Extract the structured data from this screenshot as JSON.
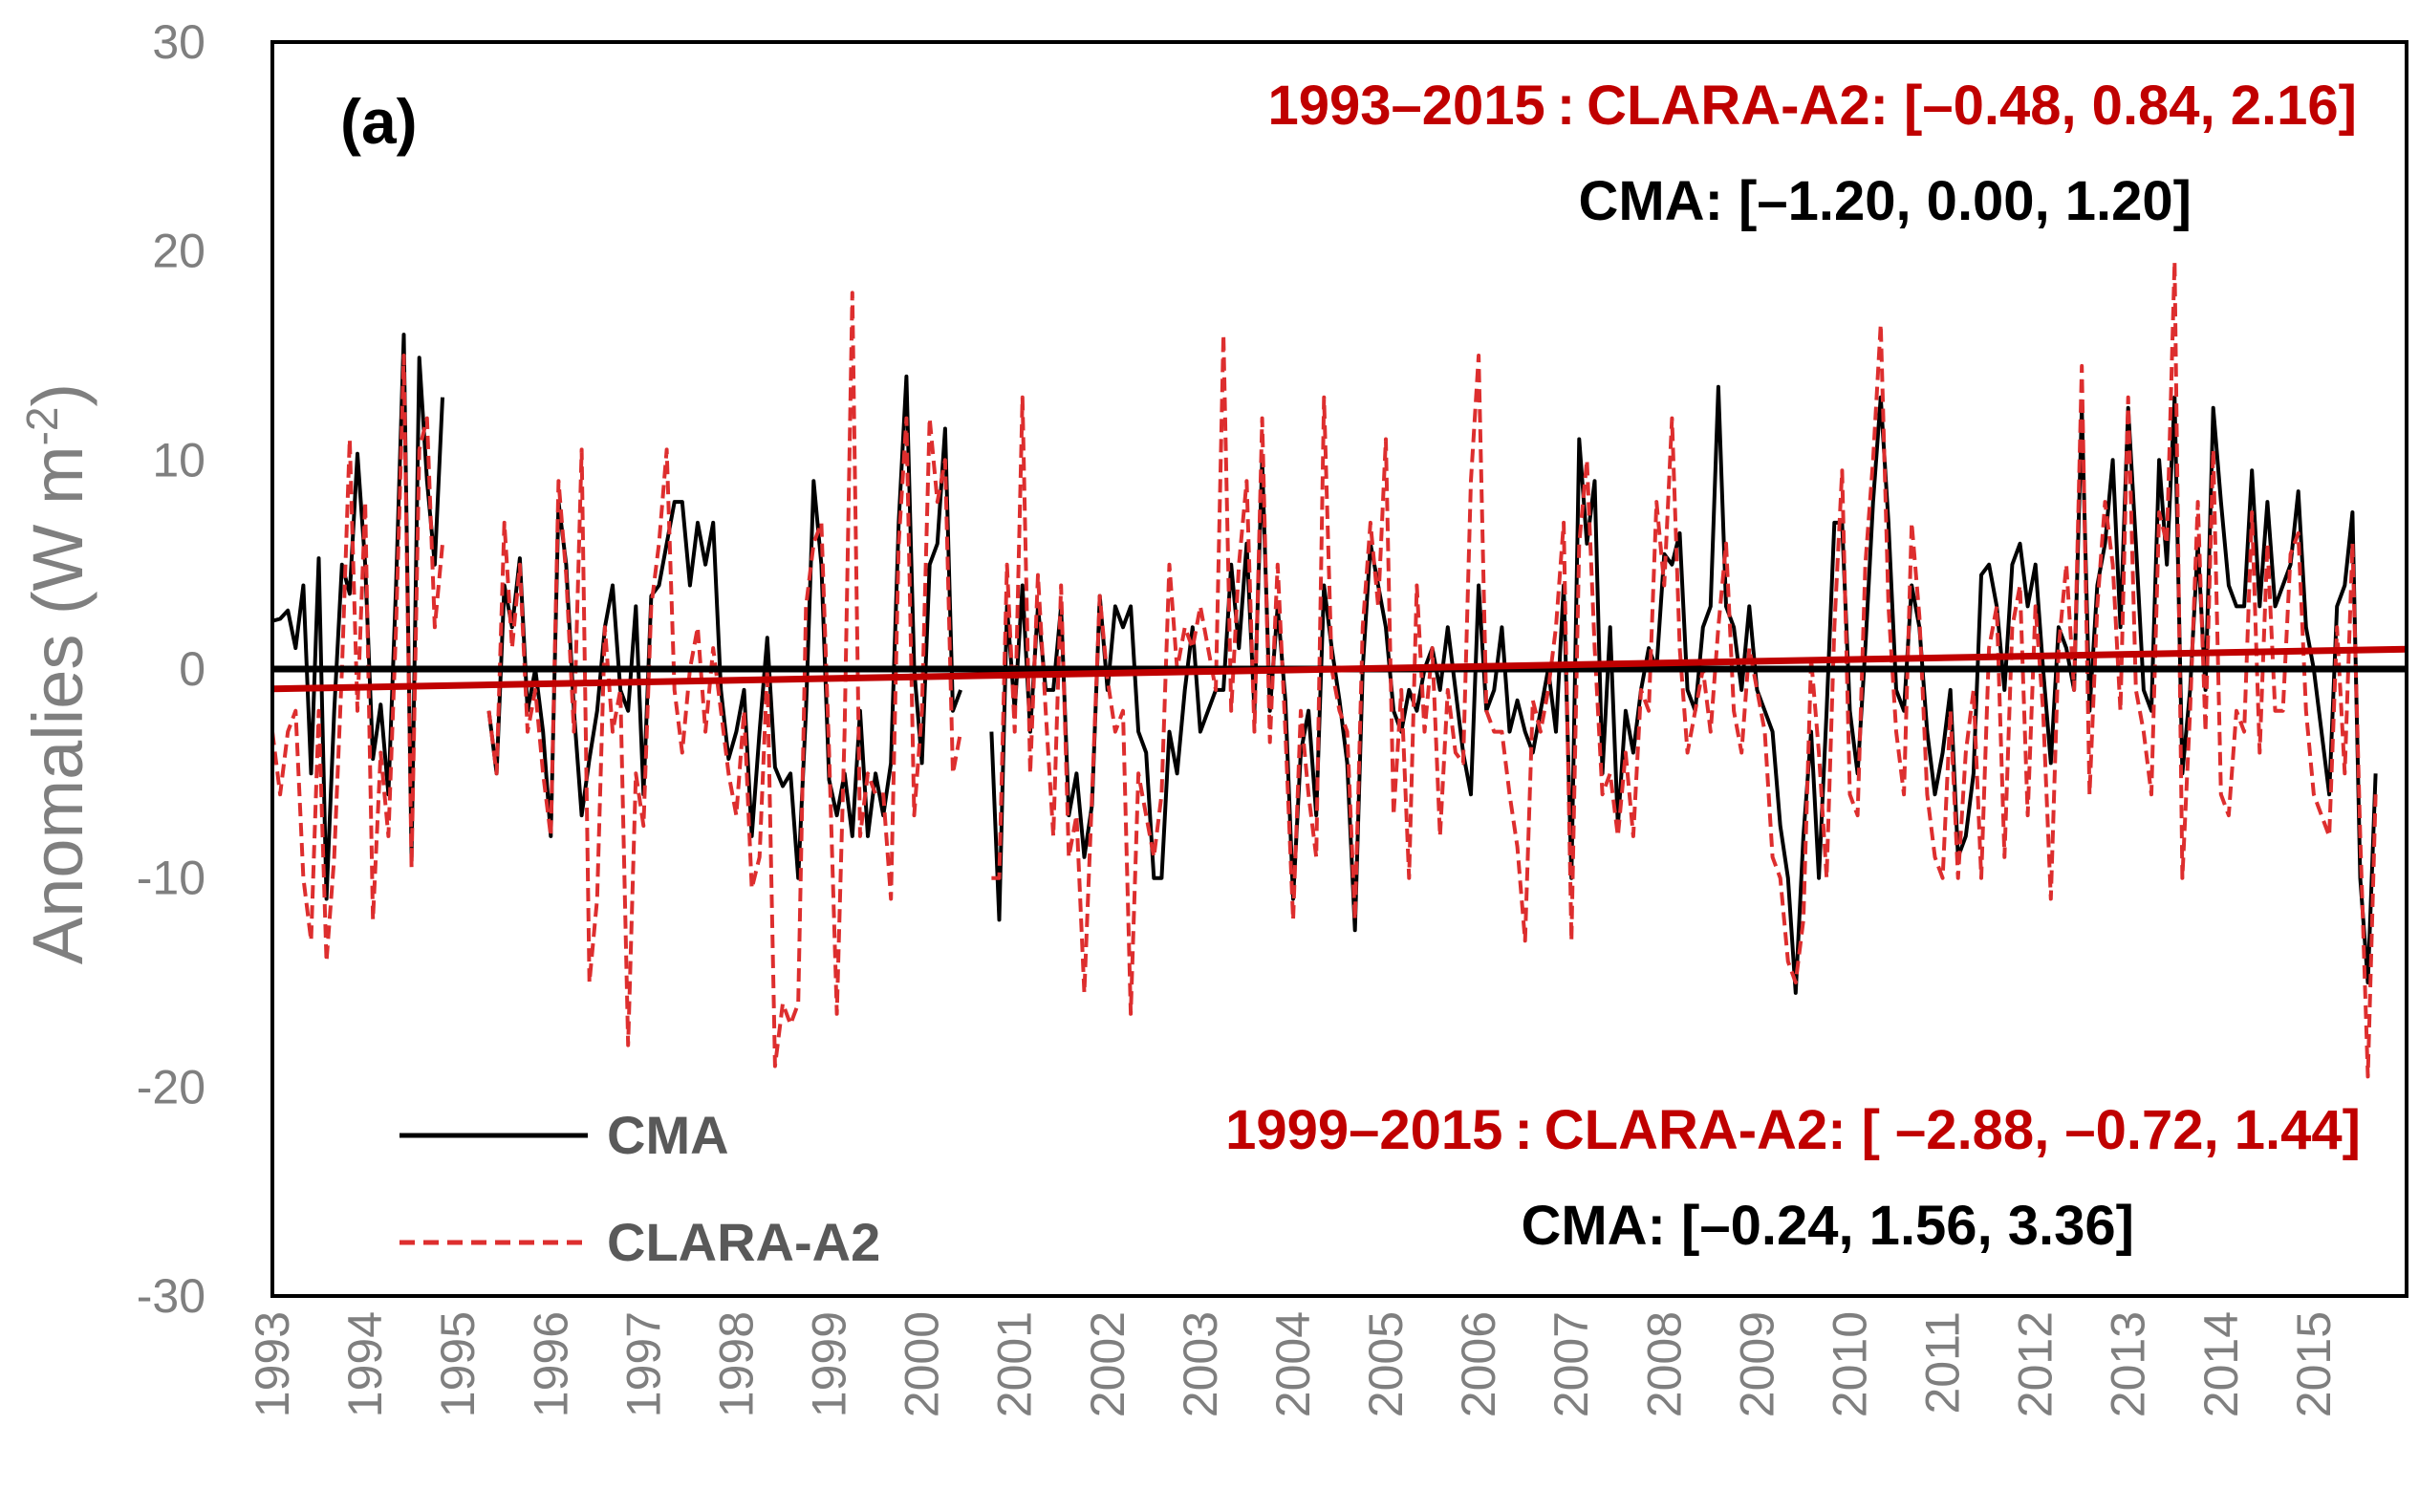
{
  "chart_data": {
    "type": "line",
    "panel_label": "(a)",
    "ylabel": "Anomalies (W m",
    "ylabel_unit_sup": "-2",
    "ylabel_close": ")",
    "ylim": [
      -30,
      30
    ],
    "yticks": [
      -30,
      -20,
      -10,
      0,
      10,
      20,
      30
    ],
    "xlim": [
      1993,
      2016
    ],
    "xticks": [
      "1993",
      "1994",
      "1995",
      "1996",
      "1997",
      "1998",
      "1999",
      "2000",
      "2001",
      "2002",
      "2003",
      "2004",
      "2005",
      "2006",
      "2007",
      "2008",
      "2009",
      "2010",
      "2011",
      "2012",
      "2013",
      "2014",
      "2015"
    ],
    "colors": {
      "cma": "#000000",
      "clara": "#c00000",
      "clara_dash": "#dd2e2e"
    },
    "legend": {
      "cma": "CMA",
      "clara": "CLARA-A2"
    },
    "annotations": {
      "period_1": "1993–2015",
      "sep_1": ":",
      "clara_1": "CLARA-A2: [–0.48, 0.84, 2.16]",
      "cma_1": "CMA: [–1.20, 0.00, 1.20]",
      "period_2": "1999–2015",
      "sep_2": ":",
      "clara_2": "CLARA-A2: [ –2.88, –0.72, 1.44]",
      "cma_2": "CMA: [–0.24, 1.56, 3.36]"
    },
    "trend_cma": {
      "start": 0.0,
      "end": 0.0
    },
    "trend_clara": {
      "start": -0.95,
      "end": 0.95
    },
    "series": [
      {
        "name": "CMA",
        "start": 1993.0,
        "values": [
          2.3,
          2.4,
          2.8,
          1.0,
          4.0,
          -5.0,
          5.3,
          -11.0,
          -2.0,
          5.0,
          3.6,
          10.3,
          5.0,
          -4.3,
          -1.7,
          -6.0,
          4.0,
          16.0,
          -9.0,
          14.9,
          9.0,
          5.0,
          13.0,
          null,
          null,
          null,
          null,
          null,
          -2.0,
          -5.0,
          4.0,
          2.0,
          5.3,
          -2.0,
          0.0,
          -3.0,
          -8.0,
          8.0,
          5.0,
          -2.0,
          -7.0,
          -4.3,
          -2.0,
          2.0,
          4.0,
          -1.0,
          -2.0,
          3.0,
          -6.0,
          3.5,
          4.0,
          6.0,
          8.0,
          8.0,
          4.0,
          7.0,
          5.0,
          7.0,
          -1.0,
          -4.3,
          -3.0,
          -1.0,
          -8.0,
          -3.0,
          1.5,
          -4.7,
          -5.6,
          -5.0,
          -10.0,
          -2.0,
          9.0,
          5.0,
          -5.3,
          -7.0,
          -5.0,
          -8.0,
          -2.0,
          -8.0,
          -5.0,
          -7.0,
          -4.5,
          7.0,
          14.0,
          0.0,
          -4.5,
          5.0,
          6.0,
          11.5,
          -2.0,
          -1.0,
          null,
          null,
          null,
          -3.0,
          -12.0,
          3.0,
          -2.0,
          4.0,
          -3.0,
          3.0,
          -1.0,
          -1.0,
          3.0,
          -7.0,
          -5.0,
          -9.0,
          -6.5,
          3.5,
          -1.0,
          3.0,
          2.0,
          3.0,
          -3.0,
          -4.0,
          -10.0,
          -10.0,
          -3.0,
          -5.0,
          -1.0,
          2.0,
          -3.0,
          -2.0,
          -1.0,
          -1.0,
          5.0,
          1.0,
          6.0,
          -2.0,
          10.0,
          -2.0,
          3.0,
          -1.5,
          -11.0,
          -4.0,
          -2.0,
          -7.0,
          4.0,
          1.0,
          -1.5,
          -4.5,
          -12.5,
          0.0,
          6.0,
          4.0,
          2.0,
          -2.0,
          -3.0,
          -1.0,
          -2.0,
          0.0,
          1.0,
          -1.0,
          2.0,
          -1.0,
          -4.0,
          -6.0,
          4.0,
          -2.0,
          -1.0,
          2.0,
          -3.0,
          -1.5,
          -3.0,
          -4.0,
          -2.0,
          0.0,
          -3.0,
          4.0,
          -10.0,
          11.0,
          6.0,
          9.0,
          -5.0,
          2.0,
          -7.5,
          -2.0,
          -4.0,
          -1.0,
          1.0,
          0.0,
          5.5,
          5.0,
          6.5,
          -1.0,
          -2.0,
          2.0,
          3.0,
          13.5,
          3.0,
          2.0,
          -1.0,
          3.0,
          -1.0,
          -2.0,
          -3.0,
          -7.5,
          -10.0,
          -15.5,
          -8.0,
          -3.0,
          -10.0,
          -2.0,
          7.0,
          7.0,
          -2.0,
          -5.0,
          1.0,
          8.0,
          13.0,
          7.0,
          -1.0,
          -2.0,
          4.0,
          2.0,
          -3.0,
          -6.0,
          -4.0,
          -1.0,
          -9.0,
          -8.0,
          -5.0,
          4.5,
          5.0,
          3.0,
          -1.0,
          5.0,
          6.0,
          3.0,
          5.0,
          0.0,
          -4.5,
          2.0,
          1.0,
          -1.0,
          12.5,
          -2.0,
          4.0,
          6.0,
          10.0,
          2.0,
          12.5,
          6.0,
          -1.0,
          -2.0,
          10.0,
          5.0,
          13.0,
          -5.0,
          -1.0,
          6.0,
          -1.0,
          12.5,
          8.0,
          4.0,
          3.0,
          3.0,
          9.5,
          3.0,
          8.0,
          3.0,
          4.0,
          5.0,
          8.5,
          2.0,
          0.0,
          -3.0,
          -6.0,
          3.0,
          4.0,
          7.5,
          -10.0,
          -15.0,
          -5.0
        ]
      },
      {
        "name": "CLARA-A2",
        "start": 1993.0,
        "values": [
          -3.0,
          -6.0,
          -3.0,
          -2.0,
          -10.0,
          -13.0,
          -2.0,
          -14.0,
          -9.0,
          0.0,
          11.0,
          -2.0,
          8.0,
          -12.0,
          -4.0,
          -8.0,
          2.0,
          15.0,
          -9.5,
          10.5,
          12.0,
          2.0,
          6.0,
          null,
          null,
          null,
          null,
          null,
          -2.0,
          -5.0,
          7.0,
          1.0,
          5.0,
          -3.0,
          -1.0,
          -5.0,
          -8.0,
          9.0,
          4.5,
          -3.0,
          10.5,
          -15.0,
          -11.0,
          2.0,
          -3.0,
          -1.0,
          -18.0,
          -5.0,
          -7.5,
          3.0,
          6.0,
          10.5,
          -1.0,
          -4.0,
          0.0,
          2.0,
          -3.0,
          1.0,
          -2.0,
          -5.0,
          -7.0,
          -2.0,
          -10.5,
          -9.0,
          0.0,
          -19.0,
          -16.0,
          -17.0,
          -16.0,
          3.0,
          6.0,
          7.0,
          -4.0,
          -16.5,
          -3.0,
          18.0,
          -8.0,
          -5.0,
          -6.0,
          -6.0,
          -11.0,
          6.0,
          12.0,
          -7.0,
          -2.0,
          12.0,
          8.0,
          10.0,
          -5.0,
          -3.0,
          null,
          null,
          null,
          -10.0,
          -10.0,
          5.0,
          -3.0,
          13.0,
          -5.0,
          4.5,
          -2.0,
          -8.0,
          4.0,
          -9.0,
          -7.0,
          -15.5,
          -6.0,
          3.5,
          -0.5,
          -3.0,
          -2.0,
          -16.5,
          -5.0,
          -7.0,
          -9.0,
          -6.0,
          5.0,
          0.0,
          2.0,
          1.0,
          3.0,
          1.0,
          -1.0,
          16.0,
          -2.0,
          5.0,
          9.0,
          -3.0,
          12.0,
          -3.5,
          5.0,
          -3.0,
          -12.0,
          -2.0,
          -6.0,
          -9.0,
          13.0,
          0.0,
          -2.0,
          -3.0,
          -12.0,
          2.0,
          7.0,
          3.0,
          11.0,
          -7.0,
          -1.0,
          -10.0,
          4.0,
          -3.0,
          1.0,
          -8.0,
          -1.0,
          -4.0,
          -4.5,
          9.0,
          15.0,
          -2.0,
          -3.0,
          -3.0,
          -6.0,
          -8.5,
          -13.0,
          -1.5,
          -3.0,
          -1.0,
          2.0,
          7.0,
          -13.0,
          6.0,
          10.0,
          1.0,
          -6.0,
          -5.0,
          -8.0,
          -4.0,
          -8.0,
          -1.0,
          -2.0,
          8.0,
          4.0,
          12.0,
          1.0,
          -4.0,
          -2.0,
          0.0,
          -3.0,
          2.0,
          6.0,
          -2.0,
          -4.0,
          1.0,
          -1.0,
          -3.0,
          -9.0,
          -10.0,
          -14.0,
          -15.0,
          -12.0,
          0.5,
          -4.0,
          -10.0,
          2.0,
          9.5,
          -6.0,
          -7.0,
          5.0,
          10.0,
          16.5,
          3.0,
          -3.0,
          -6.0,
          7.0,
          2.5,
          -6.0,
          -9.0,
          -10.0,
          -2.0,
          -10.0,
          -4.0,
          -1.0,
          -10.0,
          1.0,
          3.0,
          -9.0,
          2.0,
          4.0,
          -7.0,
          3.0,
          -2.0,
          -11.0,
          1.0,
          5.0,
          -1.0,
          14.5,
          -6.0,
          3.0,
          8.0,
          5.0,
          -2.0,
          13.0,
          -1.0,
          -3.0,
          -6.0,
          7.5,
          6.0,
          19.5,
          -10.0,
          -2.0,
          8.0,
          -3.0,
          10.5,
          -6.0,
          -7.0,
          -2.0,
          -3.0,
          7.5,
          -4.0,
          6.0,
          -2.0,
          -2.0,
          5.5,
          6.5,
          -2.0,
          -6.0,
          -7.0,
          -8.0,
          2.0,
          -5.0,
          6.0,
          -8.0,
          -19.5,
          -6.0
        ]
      }
    ]
  }
}
